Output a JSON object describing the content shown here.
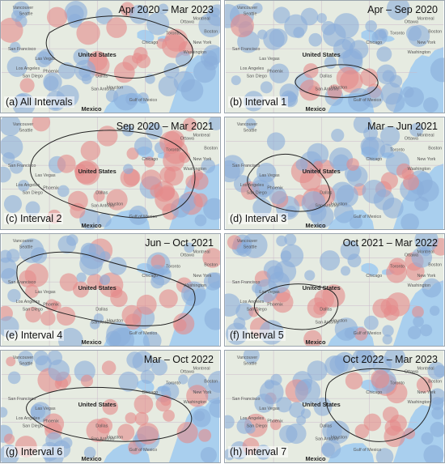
{
  "panels": [
    {
      "date": "Apr 2020 – Mar 2023",
      "caption": "(a) All Intervals"
    },
    {
      "date": "Apr – Sep 2020",
      "caption": "(b) Interval 1"
    },
    {
      "date": "Sep 2020 – Mar 2021",
      "caption": "(c) Interval 2"
    },
    {
      "date": "Mar – Jun 2021",
      "caption": "(d) Interval 3"
    },
    {
      "date": "Jun – Oct 2021",
      "caption": "(e) Interval 4"
    },
    {
      "date": "Oct 2021 – Mar 2022",
      "caption": "(f) Interval 5"
    },
    {
      "date": "Mar – Oct 2022",
      "caption": "(g) Interval 6"
    },
    {
      "date": "Oct 2022 – Mar 2023",
      "caption": "(h) Interval 7"
    }
  ],
  "map_labels": {
    "country_us": "United States",
    "country_mx": "Mexico",
    "cities": [
      "Seattle",
      "San Francisco",
      "Las Vegas",
      "Los Angeles",
      "San Diego",
      "Phoenix",
      "Dallas",
      "Houston",
      "San Antonio",
      "Chicago",
      "Toronto",
      "Ottawa",
      "Montreal",
      "Boston",
      "New York",
      "Washington",
      "Vancouver",
      "Gulf of Mexico"
    ]
  },
  "colors": {
    "water": "#a9cfee",
    "land": "#e6ebe1",
    "red_cluster": "#e58a8a",
    "blue_cluster": "#8aaedb"
  }
}
